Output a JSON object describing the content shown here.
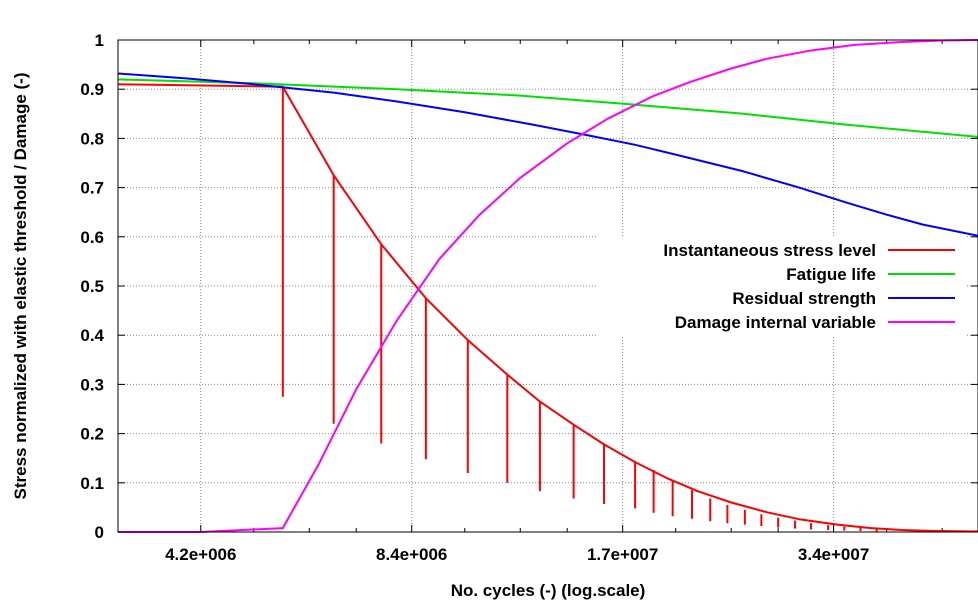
{
  "chart_data": {
    "type": "line",
    "xlabel": "No. cycles (-) (log.scale)",
    "ylabel": "Stress normalized with elastic threshold / Damage (-)",
    "x_scale": "log",
    "xlim": [
      3200000,
      54000000
    ],
    "ylim": [
      0,
      1
    ],
    "x_ticks": [
      {
        "value": 4200000,
        "label": "4.2e+006"
      },
      {
        "value": 8400000,
        "label": "8.4e+006"
      },
      {
        "value": 16800000,
        "label": "1.7e+007"
      },
      {
        "value": 33600000,
        "label": "3.4e+007"
      }
    ],
    "y_ticks": [
      {
        "value": 0,
        "label": "0"
      },
      {
        "value": 0.1,
        "label": "0.1"
      },
      {
        "value": 0.2,
        "label": "0.2"
      },
      {
        "value": 0.3,
        "label": "0.3"
      },
      {
        "value": 0.4,
        "label": "0.4"
      },
      {
        "value": 0.5,
        "label": "0.5"
      },
      {
        "value": 0.6,
        "label": "0.6"
      },
      {
        "value": 0.7,
        "label": "0.7"
      },
      {
        "value": 0.8,
        "label": "0.8"
      },
      {
        "value": 0.9,
        "label": "0.9"
      },
      {
        "value": 1,
        "label": "1"
      }
    ],
    "grid": true,
    "legend_position": "right",
    "series": [
      {
        "name": "Instantaneous stress level",
        "color": "#ff0000",
        "x": [
          3200000,
          5500000,
          6500000,
          7600000,
          8800000,
          10100000,
          11500000,
          12800000,
          14300000,
          15800000,
          17500000,
          19400000,
          21500000,
          24000000,
          27000000,
          30000000,
          34000000,
          38000000,
          42000000,
          47000000,
          54000000
        ],
        "y": [
          0.91,
          0.905,
          0.725,
          0.585,
          0.475,
          0.39,
          0.32,
          0.265,
          0.218,
          0.178,
          0.142,
          0.11,
          0.083,
          0.06,
          0.04,
          0.026,
          0.015,
          0.008,
          0.004,
          0.002,
          0.001
        ],
        "drops": {
          "x": [
            5500000,
            6500000,
            7600000,
            8800000,
            10100000,
            11500000,
            12800000,
            14300000,
            15800000,
            17500000,
            18600000,
            19800000,
            21100000,
            22400000,
            23700000,
            25100000,
            26500000,
            28000000,
            29600000,
            31200000,
            33000000,
            34800000,
            36700000,
            38700000
          ],
          "top": [
            0.905,
            0.725,
            0.585,
            0.475,
            0.39,
            0.32,
            0.265,
            0.218,
            0.178,
            0.142,
            0.126,
            0.104,
            0.085,
            0.068,
            0.055,
            0.045,
            0.036,
            0.029,
            0.023,
            0.018,
            0.014,
            0.011,
            0.009,
            0.007
          ],
          "bottom": [
            0.275,
            0.22,
            0.18,
            0.148,
            0.12,
            0.1,
            0.083,
            0.068,
            0.057,
            0.048,
            0.039,
            0.032,
            0.027,
            0.022,
            0.018,
            0.015,
            0.012,
            0.009,
            0.007,
            0.005,
            0.004,
            0.003,
            0.002,
            0.001
          ]
        }
      },
      {
        "name": "Fatigue life",
        "color": "#00e000",
        "x": [
          3200000,
          5000000,
          8000000,
          12000000,
          17000000,
          25000000,
          35000000,
          54000000
        ],
        "y": [
          0.92,
          0.912,
          0.9,
          0.887,
          0.87,
          0.85,
          0.828,
          0.803
        ]
      },
      {
        "name": "Residual strength",
        "color": "#0000ff",
        "x": [
          3200000,
          4000000,
          5000000,
          6500000,
          8000000,
          10000000,
          12500000,
          15000000,
          17500000,
          20000000,
          25000000,
          30000000,
          35000000,
          40000000,
          45000000,
          54000000
        ],
        "y": [
          0.932,
          0.922,
          0.91,
          0.893,
          0.875,
          0.853,
          0.828,
          0.806,
          0.787,
          0.767,
          0.733,
          0.7,
          0.67,
          0.645,
          0.625,
          0.602
        ]
      },
      {
        "name": "Damage internal variable",
        "color": "#ff00ff",
        "x": [
          3200000,
          4200000,
          5500000,
          6200000,
          7000000,
          8000000,
          9200000,
          10500000,
          12000000,
          14000000,
          16000000,
          18500000,
          21000000,
          24000000,
          27000000,
          31000000,
          36000000,
          42000000,
          48000000,
          54000000
        ],
        "y": [
          0,
          0.0,
          0.008,
          0.14,
          0.29,
          0.43,
          0.555,
          0.645,
          0.72,
          0.79,
          0.84,
          0.885,
          0.915,
          0.942,
          0.962,
          0.978,
          0.99,
          0.996,
          0.999,
          1.0
        ]
      }
    ]
  }
}
